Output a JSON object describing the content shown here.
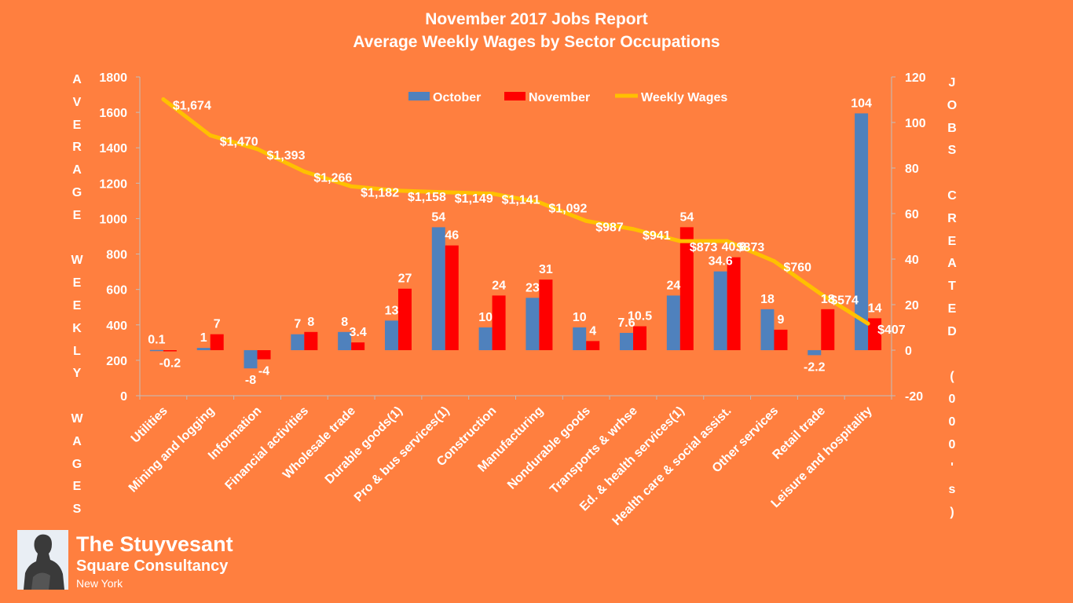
{
  "chart_data": {
    "type": "bar",
    "title_line1": "November 2017 Jobs Report",
    "title_line2": "Average Weekly Wages by Sector Occupations",
    "ylabel_left": "AVERAGE WEEKLY WAGES",
    "ylabel_right": "JOBS CREATED (000's)",
    "left_axis": {
      "min": 0,
      "max": 1800,
      "ticks": [
        "0",
        "200",
        "400",
        "600",
        "800",
        "1000",
        "1200",
        "1400",
        "1600",
        "1800"
      ]
    },
    "right_axis": {
      "min": -20,
      "max": 120,
      "ticks": [
        "-20",
        "0",
        "20",
        "40",
        "60",
        "80",
        "100",
        "120"
      ]
    },
    "categories": [
      "Utilities",
      "Mining and logging",
      "Information",
      "Financial activities",
      "Wholesale trade",
      "Durable goods(1)",
      "Pro & bus services(1)",
      "Construction",
      "Manufacturing",
      "Nondurable goods",
      "Transports & wrhse",
      "Ed. & health services(1)",
      "Health care & social assist.",
      "Other services",
      "Retail trade",
      "Leisure and hospitality"
    ],
    "series": [
      {
        "name": "October",
        "axis": "right",
        "color": "#4F81BD",
        "values": [
          0.1,
          1,
          -8,
          7,
          8,
          13,
          54,
          10,
          23,
          10,
          7.6,
          24,
          34.6,
          18,
          -2.2,
          104
        ],
        "labels": [
          "0.1",
          "1",
          "-8",
          "7",
          "8",
          "13",
          "54",
          "10",
          "23",
          "10",
          "7.6",
          "24",
          "34.6",
          "18",
          "-2.2",
          "104"
        ]
      },
      {
        "name": "November",
        "axis": "right",
        "color": "#FF0000",
        "values": [
          -0.2,
          7,
          -4,
          8,
          3.4,
          27,
          46,
          24,
          31,
          4,
          10.5,
          54,
          40.8,
          9,
          18,
          14
        ],
        "labels": [
          "-0.2",
          "7",
          "-4",
          "8",
          "3.4",
          "27",
          "46",
          "24",
          "31",
          "4",
          "10.5",
          "54",
          "40.8",
          "9",
          "18",
          "14"
        ]
      },
      {
        "name": "Weekly Wages",
        "axis": "left",
        "color": "#FFC000",
        "values": [
          1674,
          1470,
          1393,
          1266,
          1182,
          1158,
          1149,
          1141,
          1092,
          987,
          941,
          873,
          873,
          760,
          574,
          407
        ],
        "labels": [
          "$1,674",
          "$1,470",
          "$1,393",
          "$1,266",
          "$1,182",
          "$1,158",
          "$1,149",
          "$1,141",
          "$1,092",
          "$987",
          "$941",
          "$873",
          "$873",
          "$760",
          "$574",
          "$407"
        ]
      }
    ],
    "legend_position": "top-center",
    "grid": false
  },
  "branding": {
    "name_line1": "The Stuyvesant",
    "name_line2": "Square  Consultancy",
    "city": "New York"
  }
}
